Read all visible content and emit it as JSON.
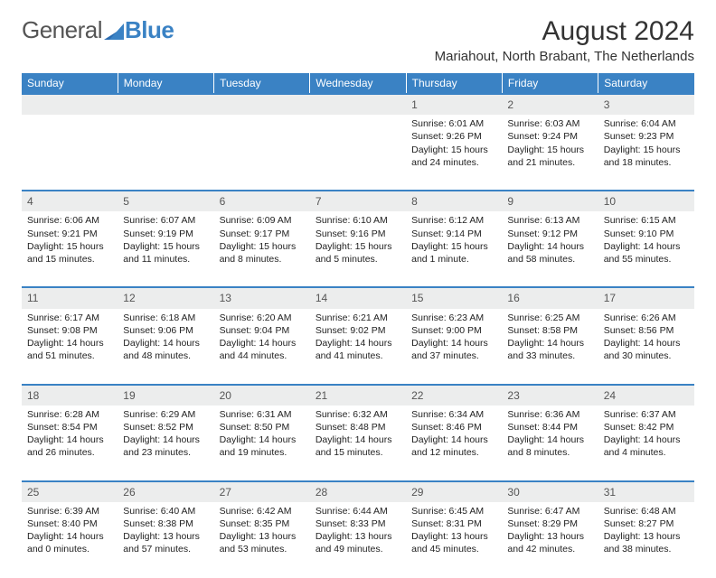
{
  "brand": {
    "part1": "General",
    "part2": "Blue"
  },
  "title": "August 2024",
  "location": "Mariahout, North Brabant, The Netherlands",
  "colors": {
    "header_bg": "#3a82c4",
    "header_text": "#ffffff",
    "daynum_bg": "#eceded",
    "divider": "#3a82c4",
    "text": "#222222"
  },
  "dayHeaders": [
    "Sunday",
    "Monday",
    "Tuesday",
    "Wednesday",
    "Thursday",
    "Friday",
    "Saturday"
  ],
  "weeks": [
    {
      "nums": [
        "",
        "",
        "",
        "",
        "1",
        "2",
        "3"
      ],
      "cells": [
        {
          "sunrise": "",
          "sunset": "",
          "daylight": ""
        },
        {
          "sunrise": "",
          "sunset": "",
          "daylight": ""
        },
        {
          "sunrise": "",
          "sunset": "",
          "daylight": ""
        },
        {
          "sunrise": "",
          "sunset": "",
          "daylight": ""
        },
        {
          "sunrise": "Sunrise: 6:01 AM",
          "sunset": "Sunset: 9:26 PM",
          "daylight": "Daylight: 15 hours and 24 minutes."
        },
        {
          "sunrise": "Sunrise: 6:03 AM",
          "sunset": "Sunset: 9:24 PM",
          "daylight": "Daylight: 15 hours and 21 minutes."
        },
        {
          "sunrise": "Sunrise: 6:04 AM",
          "sunset": "Sunset: 9:23 PM",
          "daylight": "Daylight: 15 hours and 18 minutes."
        }
      ]
    },
    {
      "nums": [
        "4",
        "5",
        "6",
        "7",
        "8",
        "9",
        "10"
      ],
      "cells": [
        {
          "sunrise": "Sunrise: 6:06 AM",
          "sunset": "Sunset: 9:21 PM",
          "daylight": "Daylight: 15 hours and 15 minutes."
        },
        {
          "sunrise": "Sunrise: 6:07 AM",
          "sunset": "Sunset: 9:19 PM",
          "daylight": "Daylight: 15 hours and 11 minutes."
        },
        {
          "sunrise": "Sunrise: 6:09 AM",
          "sunset": "Sunset: 9:17 PM",
          "daylight": "Daylight: 15 hours and 8 minutes."
        },
        {
          "sunrise": "Sunrise: 6:10 AM",
          "sunset": "Sunset: 9:16 PM",
          "daylight": "Daylight: 15 hours and 5 minutes."
        },
        {
          "sunrise": "Sunrise: 6:12 AM",
          "sunset": "Sunset: 9:14 PM",
          "daylight": "Daylight: 15 hours and 1 minute."
        },
        {
          "sunrise": "Sunrise: 6:13 AM",
          "sunset": "Sunset: 9:12 PM",
          "daylight": "Daylight: 14 hours and 58 minutes."
        },
        {
          "sunrise": "Sunrise: 6:15 AM",
          "sunset": "Sunset: 9:10 PM",
          "daylight": "Daylight: 14 hours and 55 minutes."
        }
      ]
    },
    {
      "nums": [
        "11",
        "12",
        "13",
        "14",
        "15",
        "16",
        "17"
      ],
      "cells": [
        {
          "sunrise": "Sunrise: 6:17 AM",
          "sunset": "Sunset: 9:08 PM",
          "daylight": "Daylight: 14 hours and 51 minutes."
        },
        {
          "sunrise": "Sunrise: 6:18 AM",
          "sunset": "Sunset: 9:06 PM",
          "daylight": "Daylight: 14 hours and 48 minutes."
        },
        {
          "sunrise": "Sunrise: 6:20 AM",
          "sunset": "Sunset: 9:04 PM",
          "daylight": "Daylight: 14 hours and 44 minutes."
        },
        {
          "sunrise": "Sunrise: 6:21 AM",
          "sunset": "Sunset: 9:02 PM",
          "daylight": "Daylight: 14 hours and 41 minutes."
        },
        {
          "sunrise": "Sunrise: 6:23 AM",
          "sunset": "Sunset: 9:00 PM",
          "daylight": "Daylight: 14 hours and 37 minutes."
        },
        {
          "sunrise": "Sunrise: 6:25 AM",
          "sunset": "Sunset: 8:58 PM",
          "daylight": "Daylight: 14 hours and 33 minutes."
        },
        {
          "sunrise": "Sunrise: 6:26 AM",
          "sunset": "Sunset: 8:56 PM",
          "daylight": "Daylight: 14 hours and 30 minutes."
        }
      ]
    },
    {
      "nums": [
        "18",
        "19",
        "20",
        "21",
        "22",
        "23",
        "24"
      ],
      "cells": [
        {
          "sunrise": "Sunrise: 6:28 AM",
          "sunset": "Sunset: 8:54 PM",
          "daylight": "Daylight: 14 hours and 26 minutes."
        },
        {
          "sunrise": "Sunrise: 6:29 AM",
          "sunset": "Sunset: 8:52 PM",
          "daylight": "Daylight: 14 hours and 23 minutes."
        },
        {
          "sunrise": "Sunrise: 6:31 AM",
          "sunset": "Sunset: 8:50 PM",
          "daylight": "Daylight: 14 hours and 19 minutes."
        },
        {
          "sunrise": "Sunrise: 6:32 AM",
          "sunset": "Sunset: 8:48 PM",
          "daylight": "Daylight: 14 hours and 15 minutes."
        },
        {
          "sunrise": "Sunrise: 6:34 AM",
          "sunset": "Sunset: 8:46 PM",
          "daylight": "Daylight: 14 hours and 12 minutes."
        },
        {
          "sunrise": "Sunrise: 6:36 AM",
          "sunset": "Sunset: 8:44 PM",
          "daylight": "Daylight: 14 hours and 8 minutes."
        },
        {
          "sunrise": "Sunrise: 6:37 AM",
          "sunset": "Sunset: 8:42 PM",
          "daylight": "Daylight: 14 hours and 4 minutes."
        }
      ]
    },
    {
      "nums": [
        "25",
        "26",
        "27",
        "28",
        "29",
        "30",
        "31"
      ],
      "cells": [
        {
          "sunrise": "Sunrise: 6:39 AM",
          "sunset": "Sunset: 8:40 PM",
          "daylight": "Daylight: 14 hours and 0 minutes."
        },
        {
          "sunrise": "Sunrise: 6:40 AM",
          "sunset": "Sunset: 8:38 PM",
          "daylight": "Daylight: 13 hours and 57 minutes."
        },
        {
          "sunrise": "Sunrise: 6:42 AM",
          "sunset": "Sunset: 8:35 PM",
          "daylight": "Daylight: 13 hours and 53 minutes."
        },
        {
          "sunrise": "Sunrise: 6:44 AM",
          "sunset": "Sunset: 8:33 PM",
          "daylight": "Daylight: 13 hours and 49 minutes."
        },
        {
          "sunrise": "Sunrise: 6:45 AM",
          "sunset": "Sunset: 8:31 PM",
          "daylight": "Daylight: 13 hours and 45 minutes."
        },
        {
          "sunrise": "Sunrise: 6:47 AM",
          "sunset": "Sunset: 8:29 PM",
          "daylight": "Daylight: 13 hours and 42 minutes."
        },
        {
          "sunrise": "Sunrise: 6:48 AM",
          "sunset": "Sunset: 8:27 PM",
          "daylight": "Daylight: 13 hours and 38 minutes."
        }
      ]
    }
  ]
}
